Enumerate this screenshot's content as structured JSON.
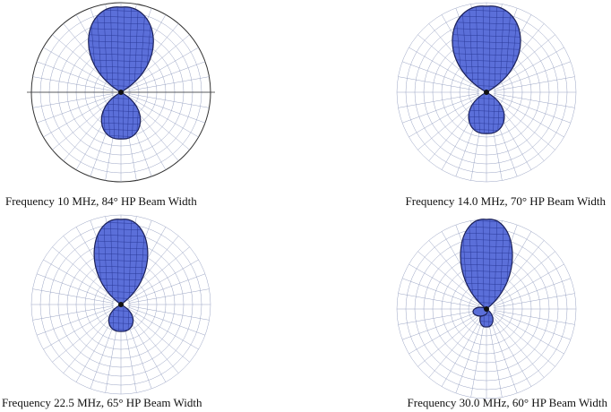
{
  "panels": [
    {
      "caption": "Frequency 10 MHz, 84° HP Beam Width"
    },
    {
      "caption": "Frequency 14.0 MHz, 70° HP Beam Width"
    },
    {
      "caption": "Frequency 22.5 MHz, 65° HP Beam Width"
    },
    {
      "caption": "Frequency 30.0 MHz, 60° HP Beam Width"
    }
  ]
}
